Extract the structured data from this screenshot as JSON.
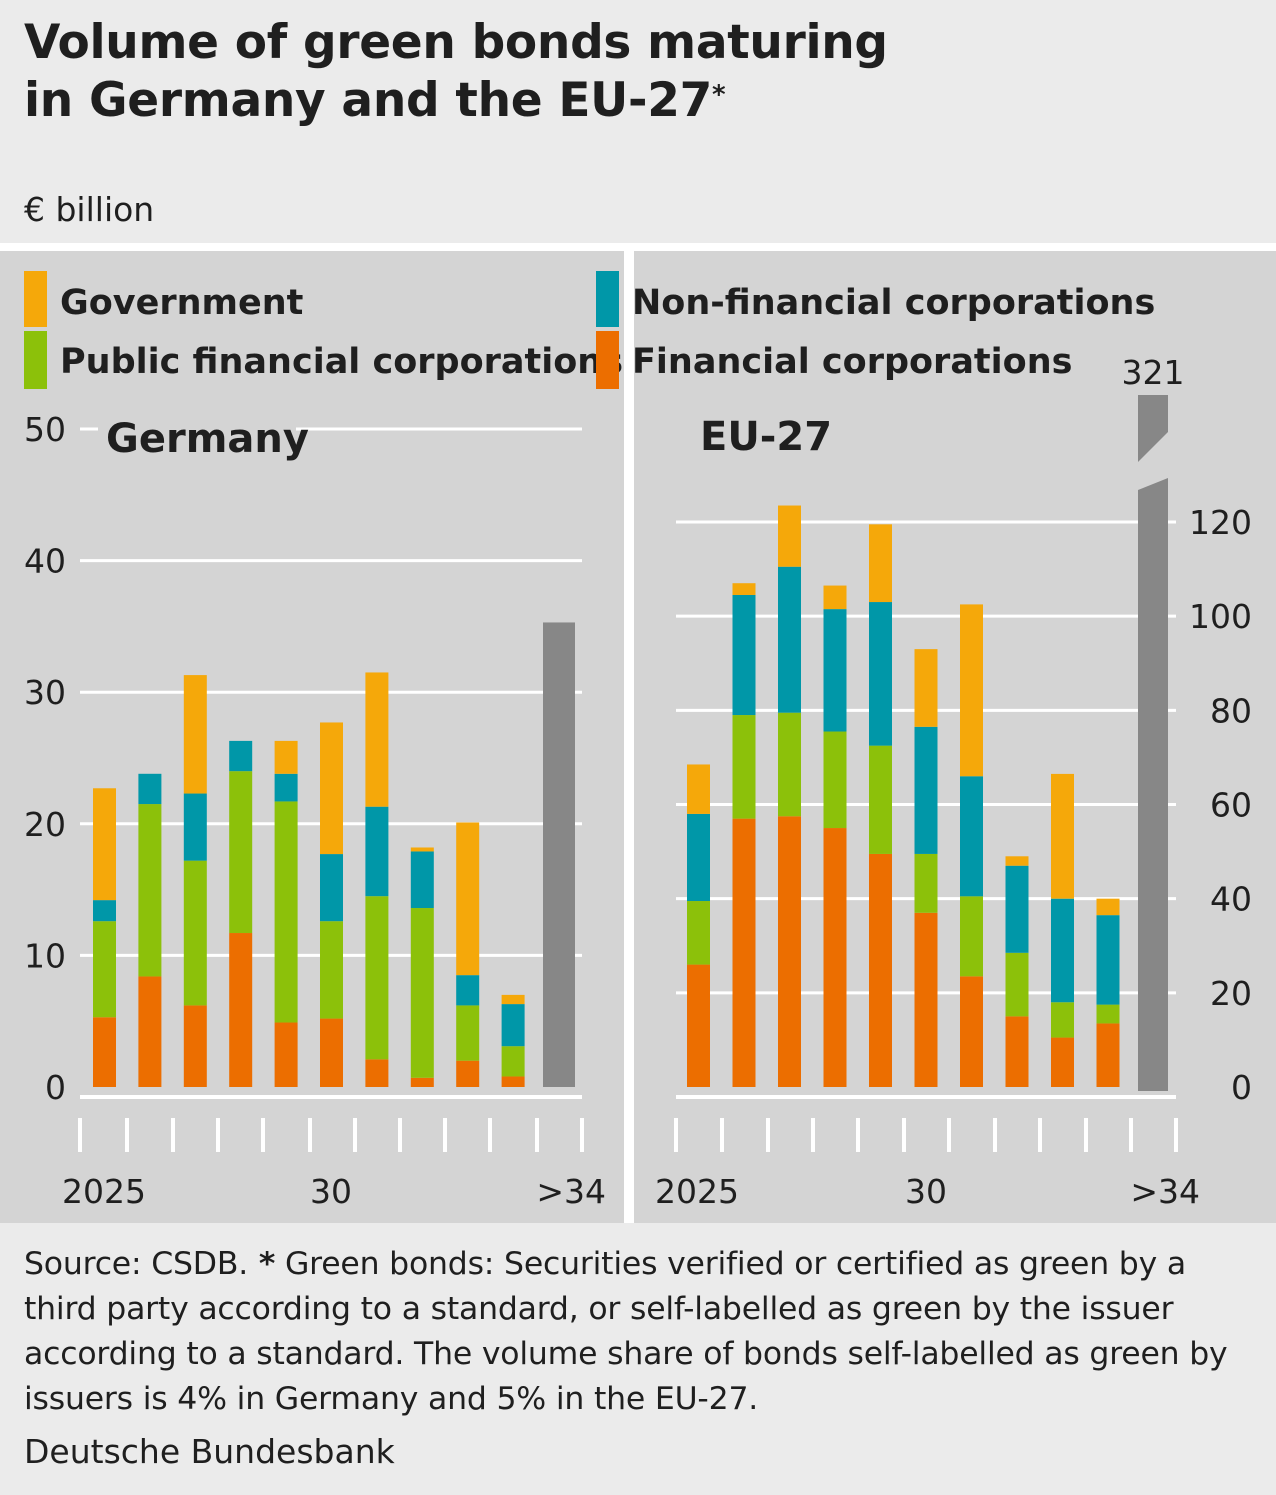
{
  "title": {
    "line1": "Volume of green bonds maturing",
    "line2": "in Germany and the EU-27",
    "marker": "*"
  },
  "unit": "€ billion",
  "legend": [
    {
      "label": "Government",
      "color": "#f5a80a"
    },
    {
      "label": "Public financial corporations",
      "color": "#8cc10a"
    },
    {
      "label": "Non-financial corporations",
      "color": "#0097a8"
    },
    {
      "label": "Financial corporations",
      "color": "#ec6e00"
    }
  ],
  "colors": {
    "government": "#f5a80a",
    "public_financial": "#8cc10a",
    "non_financial": "#0097a8",
    "financial": "#ec6e00",
    "aggregate": "#878787",
    "panel_bg": "#d4d4d4",
    "page_bg": "#ebebeb"
  },
  "chart_data": [
    {
      "type": "bar",
      "stacked": true,
      "panel_title": "Germany",
      "y_axis_side": "left",
      "ylim": [
        0,
        50
      ],
      "yticks": [
        0,
        10,
        20,
        30,
        40,
        50
      ],
      "x_tick_labels": [
        "2025",
        "30",
        ">34"
      ],
      "categories": [
        "2025",
        "2026",
        "2027",
        "2028",
        "2029",
        "2030",
        "2031",
        "2032",
        "2033",
        "2034",
        ">34"
      ],
      "series": [
        {
          "name": "Financial corporations",
          "key": "financial",
          "values": [
            5.3,
            8.4,
            6.2,
            11.7,
            4.9,
            5.2,
            2.1,
            0.7,
            2.0,
            0.8,
            null
          ]
        },
        {
          "name": "Public financial corporations",
          "key": "public_financial",
          "values": [
            7.3,
            13.1,
            11.0,
            12.3,
            16.8,
            7.4,
            12.4,
            12.9,
            4.2,
            2.3,
            null
          ]
        },
        {
          "name": "Non-financial corporations",
          "key": "non_financial",
          "values": [
            1.6,
            2.3,
            5.1,
            2.3,
            2.1,
            5.1,
            6.8,
            4.3,
            2.3,
            3.2,
            null
          ]
        },
        {
          "name": "Government",
          "key": "government",
          "values": [
            8.5,
            0,
            9.0,
            0,
            2.5,
            10.0,
            10.2,
            0.3,
            11.6,
            0.7,
            null
          ]
        }
      ],
      "aggregate_last": {
        "category": ">34",
        "value": 35.3
      }
    },
    {
      "type": "bar",
      "stacked": true,
      "panel_title": "EU-27",
      "y_axis_side": "right",
      "ylim": [
        0,
        130
      ],
      "yticks": [
        0,
        20,
        40,
        60,
        80,
        100,
        120
      ],
      "x_tick_labels": [
        "2025",
        "30",
        ">34"
      ],
      "categories": [
        "2025",
        "2026",
        "2027",
        "2028",
        "2029",
        "2030",
        "2031",
        "2032",
        "2033",
        "2034",
        ">34"
      ],
      "series": [
        {
          "name": "Financial corporations",
          "key": "financial",
          "values": [
            26,
            57,
            57.5,
            55,
            49.5,
            37,
            23.5,
            15,
            10.5,
            13.5,
            null
          ]
        },
        {
          "name": "Public financial corporations",
          "key": "public_financial",
          "values": [
            13.5,
            22,
            22,
            20.5,
            23,
            12.5,
            17,
            13.5,
            7.5,
            4,
            null
          ]
        },
        {
          "name": "Non-financial corporations",
          "key": "non_financial",
          "values": [
            18.5,
            25.5,
            31,
            26,
            30.5,
            27,
            25.5,
            18.5,
            22,
            19,
            null
          ]
        },
        {
          "name": "Government",
          "key": "government",
          "values": [
            10.5,
            2.5,
            13,
            5,
            16.5,
            16.5,
            36.5,
            2,
            26.5,
            3.5,
            null
          ]
        }
      ],
      "aggregate_last": {
        "category": ">34",
        "value": 321,
        "label": "321",
        "axis_break": true
      }
    }
  ],
  "footer": {
    "source": "Source: CSDB.",
    "marker": " *",
    "note": " Green bonds: Securities verified or certified as green by a third party according to a standard, or self-labelled as green by the issuer according to a standard. The volume share of bonds self-labelled as green by issuers is 4% in Germany and 5% in the EU-27.",
    "credit": "Deutsche Bundesbank"
  }
}
